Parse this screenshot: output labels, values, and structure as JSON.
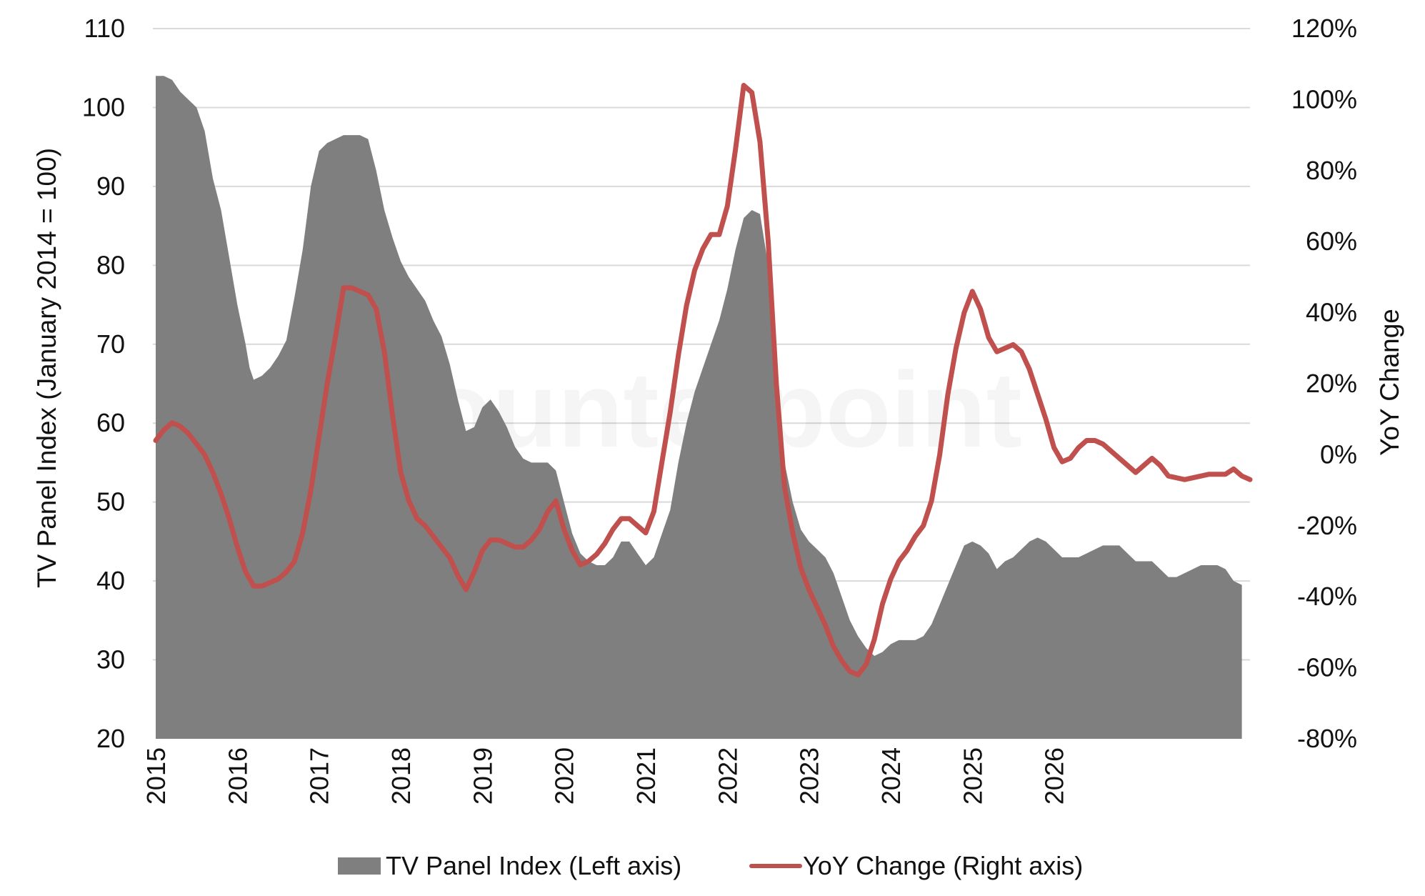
{
  "watermark": "Counterpoint",
  "chart_data": {
    "type": "area",
    "xlabel": "",
    "x_ticks": [
      "2015",
      "2016",
      "2017",
      "2018",
      "2019",
      "2020",
      "2021",
      "2022",
      "2023",
      "2024",
      "2025",
      "2026"
    ],
    "left_axis": {
      "label": "TV Panel Index (January 2014 = 100)",
      "ylim": [
        20,
        110
      ],
      "ticks": [
        "20",
        "30",
        "40",
        "50",
        "60",
        "70",
        "80",
        "90",
        "100",
        "110"
      ]
    },
    "right_axis": {
      "label": "YoY Change",
      "ylim": [
        -80,
        120
      ],
      "ticks": [
        "-80%",
        "-60%",
        "-40%",
        "-20%",
        "0%",
        "20%",
        "40%",
        "60%",
        "80%",
        "100%",
        "120%"
      ]
    },
    "gridlines": true,
    "legend_position": "bottom",
    "colors": {
      "index_area": "#7f7f7f",
      "yoy_line": "#c0504d",
      "grid": "#d9d9d9"
    },
    "series": [
      {
        "name": "TV Panel Index (Left axis)",
        "axis": "left",
        "kind": "area",
        "points": [
          [
            2015.0,
            104
          ],
          [
            2015.1,
            104
          ],
          [
            2015.2,
            103.5
          ],
          [
            2015.3,
            102
          ],
          [
            2015.4,
            101
          ],
          [
            2015.5,
            100
          ],
          [
            2015.6,
            97
          ],
          [
            2015.7,
            91
          ],
          [
            2015.8,
            87
          ],
          [
            2015.9,
            81
          ],
          [
            2016.0,
            75
          ],
          [
            2016.1,
            70
          ],
          [
            2016.15,
            67
          ],
          [
            2016.2,
            65.5
          ],
          [
            2016.3,
            66
          ],
          [
            2016.4,
            67
          ],
          [
            2016.5,
            68.5
          ],
          [
            2016.6,
            70.5
          ],
          [
            2016.7,
            76
          ],
          [
            2016.8,
            82
          ],
          [
            2016.9,
            90
          ],
          [
            2017.0,
            94.5
          ],
          [
            2017.1,
            95.5
          ],
          [
            2017.2,
            96
          ],
          [
            2017.3,
            96.5
          ],
          [
            2017.4,
            96.5
          ],
          [
            2017.5,
            96.5
          ],
          [
            2017.6,
            96
          ],
          [
            2017.7,
            92
          ],
          [
            2017.8,
            87
          ],
          [
            2017.9,
            83.5
          ],
          [
            2018.0,
            80.5
          ],
          [
            2018.1,
            78.5
          ],
          [
            2018.2,
            77
          ],
          [
            2018.3,
            75.5
          ],
          [
            2018.4,
            73
          ],
          [
            2018.5,
            71
          ],
          [
            2018.6,
            67.5
          ],
          [
            2018.7,
            63
          ],
          [
            2018.8,
            59
          ],
          [
            2018.9,
            59.5
          ],
          [
            2019.0,
            62
          ],
          [
            2019.1,
            63
          ],
          [
            2019.2,
            61.5
          ],
          [
            2019.3,
            59.5
          ],
          [
            2019.4,
            57
          ],
          [
            2019.5,
            55.5
          ],
          [
            2019.6,
            55
          ],
          [
            2019.7,
            55
          ],
          [
            2019.8,
            55
          ],
          [
            2019.9,
            54
          ],
          [
            2020.0,
            50
          ],
          [
            2020.1,
            46
          ],
          [
            2020.2,
            43.5
          ],
          [
            2020.3,
            42.5
          ],
          [
            2020.4,
            42
          ],
          [
            2020.5,
            42
          ],
          [
            2020.6,
            43
          ],
          [
            2020.7,
            45
          ],
          [
            2020.8,
            45
          ],
          [
            2020.9,
            43.5
          ],
          [
            2021.0,
            42
          ],
          [
            2021.1,
            43
          ],
          [
            2021.2,
            46
          ],
          [
            2021.3,
            49
          ],
          [
            2021.4,
            55
          ],
          [
            2021.5,
            60
          ],
          [
            2021.6,
            64
          ],
          [
            2021.7,
            67
          ],
          [
            2021.8,
            70
          ],
          [
            2021.9,
            73
          ],
          [
            2022.0,
            77
          ],
          [
            2022.1,
            82
          ],
          [
            2022.2,
            86
          ],
          [
            2022.3,
            87
          ],
          [
            2022.4,
            86.5
          ],
          [
            2022.5,
            80
          ],
          [
            2022.6,
            68
          ],
          [
            2022.7,
            55
          ],
          [
            2022.8,
            50
          ],
          [
            2022.9,
            46.5
          ],
          [
            2023.0,
            45
          ],
          [
            2023.1,
            44
          ],
          [
            2023.2,
            43
          ],
          [
            2023.3,
            41
          ],
          [
            2023.4,
            38
          ],
          [
            2023.5,
            35
          ],
          [
            2023.6,
            33
          ],
          [
            2023.7,
            31.5
          ],
          [
            2023.8,
            30.5
          ],
          [
            2023.9,
            31
          ],
          [
            2024.0,
            32
          ],
          [
            2024.1,
            32.5
          ],
          [
            2024.2,
            32.5
          ],
          [
            2024.3,
            32.5
          ],
          [
            2024.4,
            33
          ],
          [
            2024.5,
            34.5
          ],
          [
            2024.6,
            37
          ],
          [
            2024.7,
            39.5
          ],
          [
            2024.8,
            42
          ],
          [
            2024.9,
            44.5
          ],
          [
            2025.0,
            45
          ],
          [
            2025.1,
            44.5
          ],
          [
            2025.2,
            43.5
          ],
          [
            2025.3,
            41.5
          ],
          [
            2025.4,
            42.5
          ],
          [
            2025.5,
            43
          ],
          [
            2025.6,
            44
          ],
          [
            2025.7,
            45
          ],
          [
            2025.8,
            45.5
          ],
          [
            2025.9,
            45
          ],
          [
            2026.0,
            44
          ],
          [
            2026.1,
            43
          ],
          [
            2026.2,
            43
          ],
          [
            2026.3,
            43
          ],
          [
            2026.4,
            43.5
          ],
          [
            2026.5,
            44
          ],
          [
            2026.6,
            44.5
          ],
          [
            2026.7,
            44.5
          ],
          [
            2026.8,
            44.5
          ],
          [
            2026.9,
            43.5
          ],
          [
            2027.0,
            42.5
          ],
          [
            2027.1,
            42.5
          ],
          [
            2027.2,
            42.5
          ],
          [
            2027.3,
            41.5
          ],
          [
            2027.4,
            40.5
          ],
          [
            2027.5,
            40.5
          ],
          [
            2027.6,
            41
          ],
          [
            2027.7,
            41.5
          ],
          [
            2027.8,
            42
          ],
          [
            2027.9,
            42
          ],
          [
            2028.0,
            42
          ],
          [
            2028.1,
            41.5
          ],
          [
            2028.2,
            40
          ],
          [
            2028.3,
            39.5
          ]
        ]
      },
      {
        "name": "YoY Change (Right axis)",
        "axis": "right",
        "kind": "line",
        "points": [
          [
            2015.0,
            4
          ],
          [
            2015.1,
            7
          ],
          [
            2015.2,
            9
          ],
          [
            2015.3,
            8
          ],
          [
            2015.4,
            6
          ],
          [
            2015.5,
            3
          ],
          [
            2015.6,
            0
          ],
          [
            2015.7,
            -5
          ],
          [
            2015.8,
            -11
          ],
          [
            2015.9,
            -18
          ],
          [
            2016.0,
            -26
          ],
          [
            2016.1,
            -33
          ],
          [
            2016.2,
            -37
          ],
          [
            2016.3,
            -37
          ],
          [
            2016.4,
            -36
          ],
          [
            2016.5,
            -35
          ],
          [
            2016.6,
            -33
          ],
          [
            2016.7,
            -30
          ],
          [
            2016.8,
            -22
          ],
          [
            2016.9,
            -10
          ],
          [
            2017.0,
            5
          ],
          [
            2017.1,
            20
          ],
          [
            2017.2,
            33
          ],
          [
            2017.3,
            47
          ],
          [
            2017.4,
            47
          ],
          [
            2017.5,
            46
          ],
          [
            2017.6,
            45
          ],
          [
            2017.7,
            41
          ],
          [
            2017.8,
            29
          ],
          [
            2017.9,
            11
          ],
          [
            2018.0,
            -5
          ],
          [
            2018.1,
            -13
          ],
          [
            2018.2,
            -18
          ],
          [
            2018.3,
            -20
          ],
          [
            2018.4,
            -23
          ],
          [
            2018.5,
            -26
          ],
          [
            2018.6,
            -29
          ],
          [
            2018.7,
            -34
          ],
          [
            2018.8,
            -38
          ],
          [
            2018.9,
            -33
          ],
          [
            2019.0,
            -27
          ],
          [
            2019.1,
            -24
          ],
          [
            2019.2,
            -24
          ],
          [
            2019.3,
            -25
          ],
          [
            2019.4,
            -26
          ],
          [
            2019.5,
            -26
          ],
          [
            2019.6,
            -24
          ],
          [
            2019.7,
            -21
          ],
          [
            2019.8,
            -16
          ],
          [
            2019.9,
            -13
          ],
          [
            2020.0,
            -21
          ],
          [
            2020.1,
            -27
          ],
          [
            2020.2,
            -31
          ],
          [
            2020.3,
            -30
          ],
          [
            2020.4,
            -28
          ],
          [
            2020.5,
            -25
          ],
          [
            2020.6,
            -21
          ],
          [
            2020.7,
            -18
          ],
          [
            2020.8,
            -18
          ],
          [
            2020.9,
            -20
          ],
          [
            2021.0,
            -22
          ],
          [
            2021.1,
            -16
          ],
          [
            2021.2,
            -2
          ],
          [
            2021.3,
            12
          ],
          [
            2021.4,
            28
          ],
          [
            2021.5,
            42
          ],
          [
            2021.6,
            52
          ],
          [
            2021.7,
            58
          ],
          [
            2021.8,
            62
          ],
          [
            2021.9,
            62
          ],
          [
            2022.0,
            70
          ],
          [
            2022.1,
            86
          ],
          [
            2022.2,
            104
          ],
          [
            2022.3,
            102
          ],
          [
            2022.4,
            88
          ],
          [
            2022.5,
            60
          ],
          [
            2022.6,
            20
          ],
          [
            2022.7,
            -9
          ],
          [
            2022.8,
            -22
          ],
          [
            2022.9,
            -32
          ],
          [
            2023.0,
            -38
          ],
          [
            2023.1,
            -43
          ],
          [
            2023.2,
            -48
          ],
          [
            2023.3,
            -54
          ],
          [
            2023.4,
            -58
          ],
          [
            2023.5,
            -61
          ],
          [
            2023.6,
            -62
          ],
          [
            2023.7,
            -59
          ],
          [
            2023.8,
            -52
          ],
          [
            2023.9,
            -42
          ],
          [
            2024.0,
            -35
          ],
          [
            2024.1,
            -30
          ],
          [
            2024.2,
            -27
          ],
          [
            2024.3,
            -23
          ],
          [
            2024.4,
            -20
          ],
          [
            2024.5,
            -13
          ],
          [
            2024.6,
            0
          ],
          [
            2024.7,
            17
          ],
          [
            2024.8,
            30
          ],
          [
            2024.9,
            40
          ],
          [
            2025.0,
            46
          ],
          [
            2025.1,
            41
          ],
          [
            2025.2,
            33
          ],
          [
            2025.3,
            29
          ],
          [
            2025.4,
            30
          ],
          [
            2025.5,
            31
          ],
          [
            2025.6,
            29
          ],
          [
            2025.7,
            24
          ],
          [
            2025.8,
            17
          ],
          [
            2025.9,
            10
          ],
          [
            2026.0,
            2
          ],
          [
            2026.1,
            -2
          ],
          [
            2026.2,
            -1
          ],
          [
            2026.3,
            2
          ],
          [
            2026.4,
            4
          ],
          [
            2026.5,
            4
          ],
          [
            2026.6,
            3
          ],
          [
            2026.7,
            1
          ],
          [
            2026.8,
            -1
          ],
          [
            2026.9,
            -3
          ],
          [
            2027.0,
            -5
          ],
          [
            2027.1,
            -3
          ],
          [
            2027.2,
            -1
          ],
          [
            2027.3,
            -3
          ],
          [
            2027.4,
            -6
          ],
          [
            2027.5,
            -6.5
          ],
          [
            2027.6,
            -7
          ],
          [
            2027.7,
            -6.5
          ],
          [
            2027.8,
            -6
          ],
          [
            2027.9,
            -5.5
          ],
          [
            2028.0,
            -5.5
          ],
          [
            2028.1,
            -5.5
          ],
          [
            2028.2,
            -4
          ],
          [
            2028.3,
            -6
          ],
          [
            2028.4,
            -7
          ]
        ]
      }
    ]
  }
}
